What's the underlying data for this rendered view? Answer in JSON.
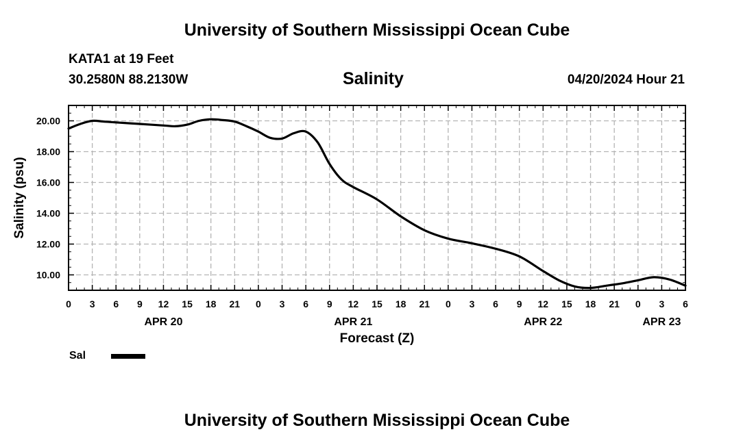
{
  "page": {
    "title_top": "University of Southern Mississippi Ocean Cube",
    "title_bottom": "University of Southern Mississippi Ocean Cube",
    "station": "KATA1 at 19 Feet",
    "coords": "30.2580N  88.2130W",
    "date": "04/20/2024 Hour 21"
  },
  "legend": {
    "label": "Sal",
    "color": "#000000"
  },
  "colors": {
    "line": "#000000",
    "grid": "#b4b4b4",
    "axis": "#000000"
  },
  "chart_data": {
    "type": "line",
    "title": "Salinity",
    "xlabel": "Forecast (Z)",
    "ylabel": "Salinity (psu)",
    "x_unit": "hours from APR 20 00Z",
    "xlim": [
      0,
      78
    ],
    "ylim": [
      9.0,
      21.0
    ],
    "grid": true,
    "x_ticks": [
      {
        "h": 0,
        "label": "0"
      },
      {
        "h": 3,
        "label": "3"
      },
      {
        "h": 6,
        "label": "6"
      },
      {
        "h": 9,
        "label": "9"
      },
      {
        "h": 12,
        "label": "12"
      },
      {
        "h": 15,
        "label": "15"
      },
      {
        "h": 18,
        "label": "18"
      },
      {
        "h": 21,
        "label": "21"
      },
      {
        "h": 24,
        "label": "0"
      },
      {
        "h": 27,
        "label": "3"
      },
      {
        "h": 30,
        "label": "6"
      },
      {
        "h": 33,
        "label": "9"
      },
      {
        "h": 36,
        "label": "12"
      },
      {
        "h": 39,
        "label": "15"
      },
      {
        "h": 42,
        "label": "18"
      },
      {
        "h": 45,
        "label": "21"
      },
      {
        "h": 48,
        "label": "0"
      },
      {
        "h": 51,
        "label": "3"
      },
      {
        "h": 54,
        "label": "6"
      },
      {
        "h": 57,
        "label": "9"
      },
      {
        "h": 60,
        "label": "12"
      },
      {
        "h": 63,
        "label": "15"
      },
      {
        "h": 66,
        "label": "18"
      },
      {
        "h": 69,
        "label": "21"
      },
      {
        "h": 72,
        "label": "0"
      },
      {
        "h": 75,
        "label": "3"
      },
      {
        "h": 78,
        "label": "6"
      }
    ],
    "date_labels": [
      {
        "h": 12,
        "label": "APR 20"
      },
      {
        "h": 36,
        "label": "APR 21"
      },
      {
        "h": 60,
        "label": "APR 22"
      },
      {
        "h": 75,
        "label": "APR 23"
      }
    ],
    "y_ticks": [
      {
        "v": 10,
        "label": "10.00"
      },
      {
        "v": 12,
        "label": "12.00"
      },
      {
        "v": 14,
        "label": "14.00"
      },
      {
        "v": 16,
        "label": "16.00"
      },
      {
        "v": 18,
        "label": "18.00"
      },
      {
        "v": 20,
        "label": "20.00"
      }
    ],
    "series": [
      {
        "name": "Sal",
        "x": [
          0,
          1.5,
          3,
          4.5,
          6,
          9,
          12,
          13.5,
          15,
          16.5,
          18,
          19.5,
          21,
          22.5,
          24,
          25.5,
          27,
          28.5,
          30,
          31.5,
          33,
          34.5,
          36,
          39,
          42,
          45,
          48,
          51,
          54,
          57,
          60,
          62,
          64,
          66,
          68,
          70,
          72,
          74,
          76,
          78
        ],
        "values": [
          19.5,
          19.8,
          20.0,
          19.95,
          19.9,
          19.8,
          19.7,
          19.65,
          19.75,
          20.0,
          20.1,
          20.05,
          19.95,
          19.65,
          19.3,
          18.9,
          18.85,
          19.2,
          19.3,
          18.6,
          17.2,
          16.2,
          15.7,
          14.9,
          13.8,
          12.9,
          12.35,
          12.05,
          11.7,
          11.2,
          10.25,
          9.65,
          9.25,
          9.15,
          9.3,
          9.45,
          9.65,
          9.85,
          9.7,
          9.3
        ]
      }
    ]
  }
}
